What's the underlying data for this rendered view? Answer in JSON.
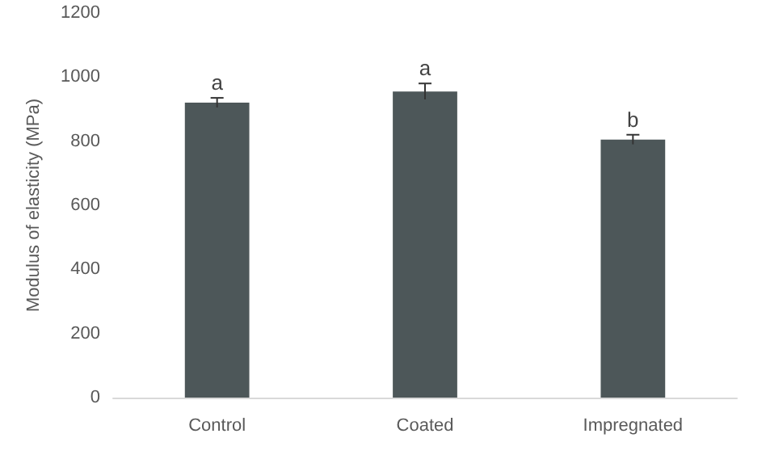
{
  "chart_data": {
    "type": "bar",
    "ylabel": "Modulus of elasticity (MPa)",
    "categories": [
      "Control",
      "Coated",
      "Impregnated"
    ],
    "values": [
      920,
      955,
      805
    ],
    "color": "#4d5759",
    "errors": [
      15,
      25,
      15
    ],
    "ylim": [
      0,
      1200
    ],
    "yticks": [
      0,
      200,
      400,
      600,
      800,
      1000,
      1200
    ],
    "grid": false,
    "annotations": [
      {
        "text": "a",
        "x": "Control",
        "y": 935
      },
      {
        "text": "a",
        "x": "Coated",
        "y": 980
      },
      {
        "text": "b",
        "x": "Impregnated",
        "y": 820
      }
    ]
  }
}
